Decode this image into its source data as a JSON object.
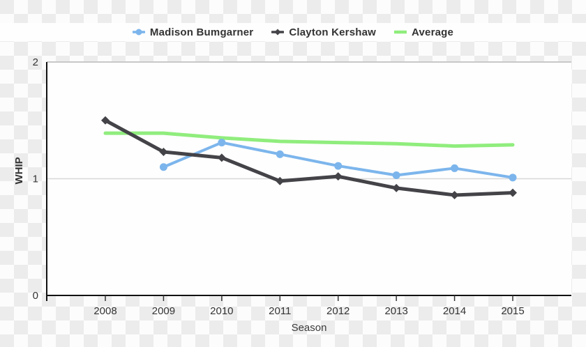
{
  "legend": {
    "items": [
      {
        "label": "Madison Bumgarner"
      },
      {
        "label": "Clayton Kershaw"
      },
      {
        "label": "Average"
      }
    ]
  },
  "chart_data": {
    "type": "line",
    "title": "",
    "xlabel": "Season",
    "ylabel": "WHIP",
    "categories": [
      "2008",
      "2009",
      "2010",
      "2011",
      "2012",
      "2013",
      "2014",
      "2015"
    ],
    "series": [
      {
        "name": "Madison Bumgarner",
        "color": "#7cb5ec",
        "marker": "circle",
        "values": [
          null,
          1.1,
          1.31,
          1.21,
          1.11,
          1.03,
          1.09,
          1.01
        ]
      },
      {
        "name": "Clayton Kershaw",
        "color": "#434348",
        "marker": "diamond",
        "values": [
          1.5,
          1.23,
          1.18,
          0.98,
          1.02,
          0.92,
          0.86,
          0.88
        ]
      },
      {
        "name": "Average",
        "color": "#90ed7d",
        "marker": "none",
        "values": [
          1.39,
          1.39,
          1.35,
          1.32,
          1.31,
          1.3,
          1.28,
          1.29
        ]
      }
    ],
    "ylim": [
      0,
      2
    ],
    "yticks": [
      0,
      1,
      2
    ],
    "grid": "horizontal gridline at y=1, top border at y=2",
    "legend_position": "top",
    "plot_background": "#fefefe"
  }
}
